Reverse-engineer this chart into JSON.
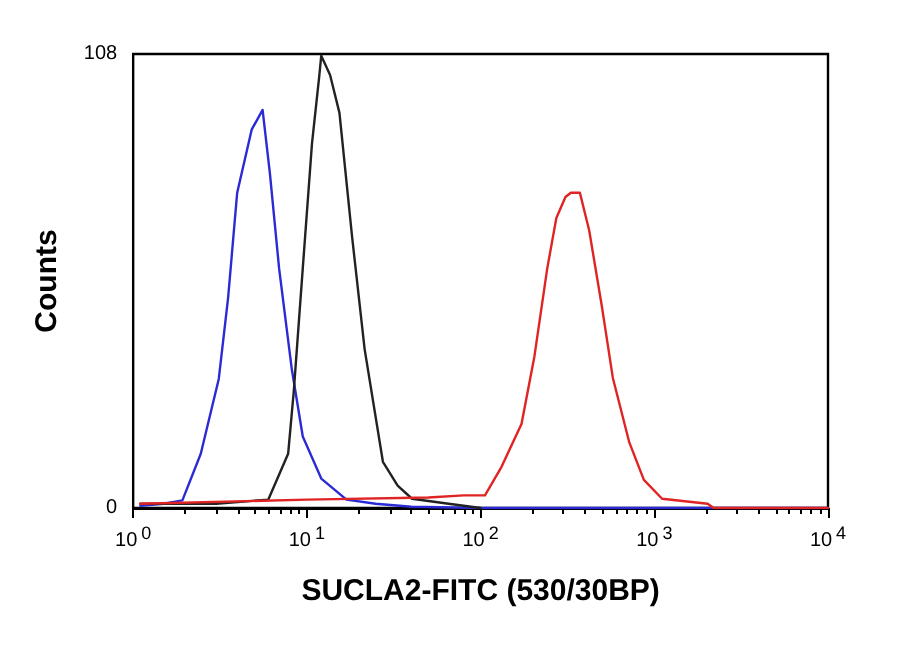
{
  "chart_data": {
    "type": "line",
    "xlabel": "SUCLA2-FITC (530/30BP)",
    "ylabel": "Counts",
    "log": "x",
    "grid": false,
    "marker": "none",
    "line_style": "solid",
    "xlim": [
      1,
      10000
    ],
    "xticks": [
      {
        "value": 1,
        "label": "10$^{0}$"
      },
      {
        "value": 10,
        "label": "10$^{1}$"
      },
      {
        "value": 100,
        "label": "10$^{2}$"
      },
      {
        "value": 1000,
        "label": "10$^{3}$"
      },
      {
        "value": 10000,
        "label": "10$^{4}$"
      }
    ],
    "ylim": [
      0,
      108
    ],
    "yticks": [
      0,
      108
    ],
    "series": [
      {
        "color": "#2b2bd6",
        "x": [
          1.1,
          1.5,
          1.92,
          2.45,
          3.11,
          3.52,
          3.97,
          4.81,
          5.56,
          6.13,
          6.92,
          8.19,
          9.47,
          12.1,
          16.9,
          24.9,
          40,
          100,
          10000
        ],
        "values": [
          0.5,
          1,
          1.8,
          12.9,
          30.7,
          50,
          75,
          90,
          94.7,
          79.5,
          57,
          33,
          17,
          7,
          2,
          1,
          0.3,
          0,
          0
        ]
      },
      {
        "color": "#222222",
        "x": [
          1.1,
          3,
          6,
          7.8,
          8.4,
          9.47,
          10.7,
          11.8,
          12.1,
          13.6,
          15.4,
          18.2,
          21.5,
          27.4,
          33.3,
          40.3,
          65.5,
          100
        ],
        "values": [
          1,
          1,
          2,
          12.9,
          27.6,
          57,
          86.7,
          103,
          107.6,
          103,
          94,
          64.6,
          37.8,
          11,
          5.3,
          2.2,
          1,
          0
        ]
      },
      {
        "color": "#e02424",
        "x": [
          1.1,
          10,
          50,
          80,
          106,
          132,
          172,
          204,
          242,
          273,
          308,
          331,
          373,
          422,
          499,
          577,
          718,
          871,
          1109,
          2028,
          2200,
          10000
        ],
        "values": [
          1,
          2,
          2.5,
          3,
          3,
          9.8,
          20,
          36,
          57,
          69,
          74,
          75,
          75,
          66,
          48,
          31,
          15.6,
          6.7,
          2.2,
          1,
          0,
          0
        ]
      }
    ]
  }
}
